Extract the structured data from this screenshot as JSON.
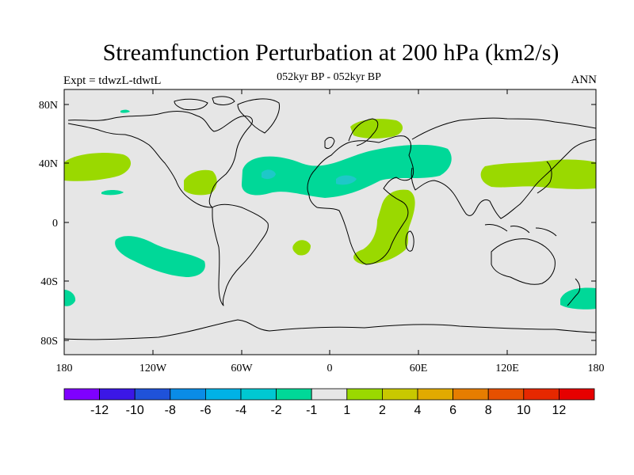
{
  "title": "Streamfunction Perturbation at 200 hPa (km2/s)",
  "subtitle": "052kyr BP - 052kyr BP",
  "left_label": "Expt = tdwzL-tdwtL",
  "right_label": "ANN",
  "lat_ticks": [
    "80N",
    "40N",
    "0",
    "40S",
    "80S"
  ],
  "lon_ticks": [
    "180",
    "120W",
    "60W",
    "0",
    "60E",
    "120E",
    "180"
  ],
  "colorbar": {
    "colors": [
      "#7f00ff",
      "#3b17e6",
      "#1f52d9",
      "#0a8ce6",
      "#00b2e6",
      "#00c8d2",
      "#00d898",
      "#e6e6e6",
      "#9ad900",
      "#c8c800",
      "#e1aa00",
      "#e67d00",
      "#e65000",
      "#e62800",
      "#e60000"
    ],
    "labels": [
      "-12",
      "-10",
      "-8",
      "-6",
      "-4",
      "-2",
      "-1",
      "1",
      "2",
      "4",
      "6",
      "8",
      "10",
      "12"
    ]
  },
  "colors": {
    "background": "#e6e6e6",
    "negative_light": "#00d898",
    "negative_mid": "#1ec8c8",
    "positive_light": "#9ad900",
    "positive_mid": "#c8c800",
    "coast": "#000000"
  }
}
